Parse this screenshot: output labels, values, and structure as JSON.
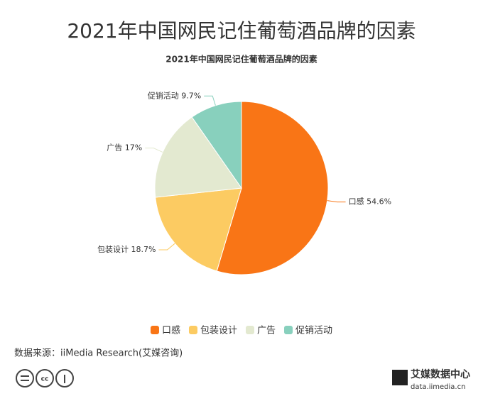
{
  "chart_data": {
    "type": "pie",
    "title": "2021年中国网民记住葡萄酒品牌的因素",
    "subtitle": "2021年中国网民记住葡萄酒品牌的因素",
    "categories": [
      "口感",
      "包装设计",
      "广告",
      "促销活动"
    ],
    "values": [
      54.6,
      18.7,
      17,
      9.7
    ],
    "value_labels": [
      "54.6%",
      "18.7%",
      "17%",
      "9.7%"
    ],
    "colors": [
      "#f97516",
      "#fccb62",
      "#e3e9d0",
      "#88d0bd"
    ],
    "source": "数据来源：iiMedia Research(艾媒咨询)",
    "brand": "艾媒数据中心",
    "brand_url": "data.iimedia.cn"
  }
}
